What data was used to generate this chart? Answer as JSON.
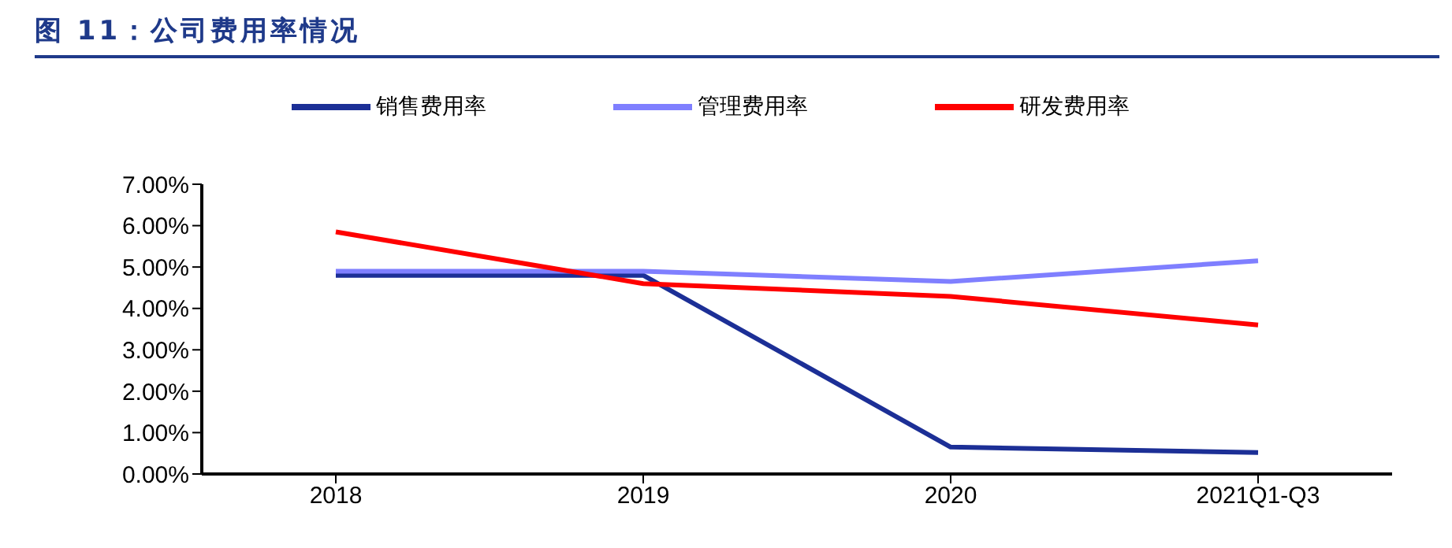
{
  "chart_data": {
    "type": "line",
    "title": "图 11：公司费用率情况",
    "categories": [
      "2018",
      "2019",
      "2020",
      "2021Q1-Q3"
    ],
    "series": [
      {
        "name": "销售费用率",
        "color": "#1c2f96",
        "values": [
          4.8,
          4.8,
          0.65,
          0.52
        ]
      },
      {
        "name": "管理费用率",
        "color": "#7f7fff",
        "values": [
          4.9,
          4.9,
          4.65,
          5.15
        ]
      },
      {
        "name": "研发费用率",
        "color": "#ff0000",
        "values": [
          5.85,
          4.6,
          4.29,
          3.6
        ]
      }
    ],
    "ylim": [
      0,
      7
    ],
    "yticks": [
      {
        "value": 0,
        "label": "0.00%"
      },
      {
        "value": 1,
        "label": "1.00%"
      },
      {
        "value": 2,
        "label": "2.00%"
      },
      {
        "value": 3,
        "label": "3.00%"
      },
      {
        "value": 4,
        "label": "4.00%"
      },
      {
        "value": 5,
        "label": "5.00%"
      },
      {
        "value": 6,
        "label": "6.00%"
      },
      {
        "value": 7,
        "label": "7.00%"
      }
    ],
    "grid": false,
    "legend": "top",
    "marker": "none",
    "line_style": "solid"
  }
}
